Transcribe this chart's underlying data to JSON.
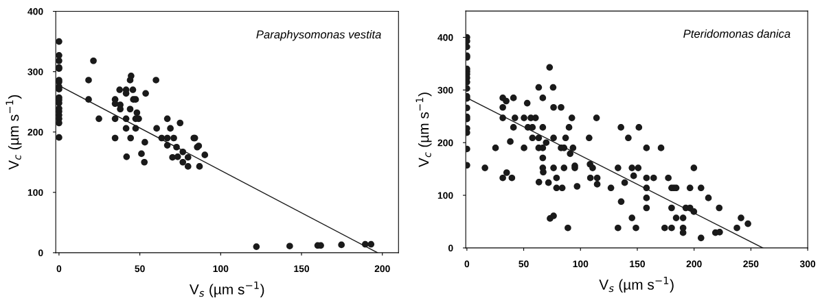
{
  "chart_data": [
    {
      "type": "scatter",
      "xlabel": "V$_{s}$ (µm s$^{−1}$)",
      "ylabel": "V$_{c}$ (µm s$^{−1}$)",
      "annotations": [
        "Paraphysomonas vestita"
      ],
      "xlim": [
        -2,
        210
      ],
      "ylim": [
        0,
        400
      ],
      "xticks": [
        0,
        50,
        100,
        150,
        200
      ],
      "yticks": [
        0,
        100,
        200,
        300,
        400
      ],
      "grid": false,
      "marker": "circle",
      "series": [
        {
          "color": "#1a1a1a",
          "x": [
            0,
            0,
            0,
            0,
            0,
            0,
            0,
            0,
            0,
            0,
            0,
            0,
            0,
            0,
            0,
            0,
            0,
            0,
            18.3,
            18.3,
            21.3,
            24.7,
            34.7,
            34.7,
            34.7,
            34.7,
            37.5,
            37.9,
            37.9,
            41.5,
            41.5,
            41.5,
            41.5,
            41.8,
            44,
            44.6,
            44,
            44.3,
            45.7,
            46,
            47.4,
            47.4,
            48.2,
            49.3,
            47.4,
            51,
            52.8,
            53.1,
            53.6,
            60,
            60.4,
            63.5,
            67,
            67,
            67,
            68.9,
            70.2,
            71,
            72.7,
            73.4,
            74.9,
            76.6,
            76.6,
            79.8,
            79.8,
            83.4,
            84,
            85.5,
            86.4,
            86.9,
            90.2,
            122.1,
            142.7,
            160,
            161.9,
            174.7,
            189.4,
            193
          ],
          "values": [
            350,
            327,
            318,
            307,
            305,
            286,
            283,
            275,
            271,
            257,
            253,
            248,
            239,
            234,
            228,
            222,
            215,
            191,
            286,
            254,
            318,
            222,
            254,
            247,
            222,
            190,
            270,
            245,
            238,
            270,
            264,
            222,
            206,
            159,
            286,
            293,
            238,
            190,
            270,
            254,
            254,
            222,
            232,
            222,
            206,
            164,
            150,
            183,
            264,
            286,
            206,
            190,
            222,
            190,
            178,
            206,
            158,
            190,
            175,
            159,
            215,
            167,
            150,
            158,
            143,
            190,
            190,
            175,
            177,
            143,
            162,
            10,
            11,
            12,
            12,
            13,
            14,
            14
          ]
        },
        {
          "type": "line",
          "color": "#1a1a1a",
          "marker": "none",
          "x": [
            0,
            197
          ],
          "values": [
            277,
            0
          ]
        }
      ]
    },
    {
      "type": "scatter",
      "xlabel": "V$_{s}$ (µm s$^{−1}$)",
      "ylabel": "V$_{c}$ (µm s$^{−1}$)",
      "annotations": [
        "Pteridomonas danica"
      ],
      "xlim": [
        -1,
        300
      ],
      "ylim": [
        0,
        450
      ],
      "xticks": [
        0,
        50,
        100,
        150,
        200,
        250,
        300
      ],
      "yticks": [
        0,
        100,
        200,
        300,
        400
      ],
      "grid": false,
      "marker": "circle",
      "series": [
        {
          "color": "#1a1a1a",
          "x": [
            0,
            0,
            0,
            0,
            0,
            0,
            0,
            0,
            0,
            0,
            0,
            0,
            0,
            0,
            0,
            0,
            0,
            0,
            0,
            0,
            15.9,
            25.2,
            31.6,
            31.6,
            31.6,
            31.6,
            34.6,
            35,
            38.2,
            39.6,
            41,
            42.3,
            41,
            50.3,
            50.3,
            53.1,
            53.7,
            56.3,
            57.7,
            57.7,
            60.4,
            63.2,
            63.2,
            63.2,
            63.4,
            66.8,
            66.8,
            66.8,
            66.8,
            66.8,
            67.2,
            69.8,
            71.8,
            72.8,
            73.2,
            76.3,
            75.9,
            76.3,
            76.3,
            76.3,
            78.9,
            78.9,
            82.9,
            82.9,
            83.9,
            85.5,
            85.5,
            86.9,
            88.9,
            89.9,
            90.9,
            92.4,
            93.4,
            95,
            95,
            97,
            107.6,
            108.4,
            108.7,
            110.7,
            114.1,
            114.7,
            114.7,
            126.8,
            133,
            133,
            135.6,
            142.1,
            151.4,
            145.3,
            150.8,
            146.8,
            138.9,
            135.8,
            158.1,
            170.9,
            158.1,
            164.4,
            158.1,
            158.1,
            158.1,
            145.3,
            148.8,
            177.3,
            180.2,
            182.2,
            184.2,
            196.4,
            206.1,
            199.8,
            212.6,
            180.2,
            192.7,
            196.4,
            199.8,
            222.1,
            184.2,
            190.3,
            174.1,
            180.2,
            190.3,
            190.3,
            206.1,
            218.8,
            222.5,
            237.7,
            241.3,
            247.4
          ],
          "values": [
            400,
            393,
            382,
            365,
            362,
            340,
            335,
            330,
            323,
            315,
            303,
            288,
            284,
            266,
            249,
            245,
            227,
            219,
            188,
            157,
            152,
            190,
            285,
            267,
            247,
            133,
            279,
            143,
            202,
            133,
            285,
            247,
            229,
            247,
            190,
            275,
            229,
            247,
            229,
            209,
            247,
            209,
            305,
            190,
            125,
            285,
            229,
            190,
            171,
            152,
            144,
            200,
            124,
            343,
            56,
            61,
            305,
            267,
            209,
            152,
            133,
            114,
            267,
            190,
            114,
            190,
            152,
            209,
            38,
            229,
            179,
            247,
            190,
            156,
            152,
            117,
            209,
            159,
            133,
            152,
            247,
            133,
            121,
            114,
            152,
            38,
            229,
            209,
            229,
            152,
            152,
            137,
            124,
            88,
            190,
            190,
            133,
            133,
            114,
            95,
            76,
            57,
            38,
            133,
            114,
            114,
            114,
            114,
            114,
            152,
            95,
            76,
            76,
            76,
            69,
            76,
            57,
            57,
            38,
            38,
            38,
            29,
            19,
            29,
            30,
            38,
            57,
            46
          ]
        },
        {
          "type": "line",
          "color": "#1a1a1a",
          "marker": "none",
          "x": [
            0,
            260.5
          ],
          "values": [
            285,
            0
          ]
        }
      ]
    }
  ]
}
